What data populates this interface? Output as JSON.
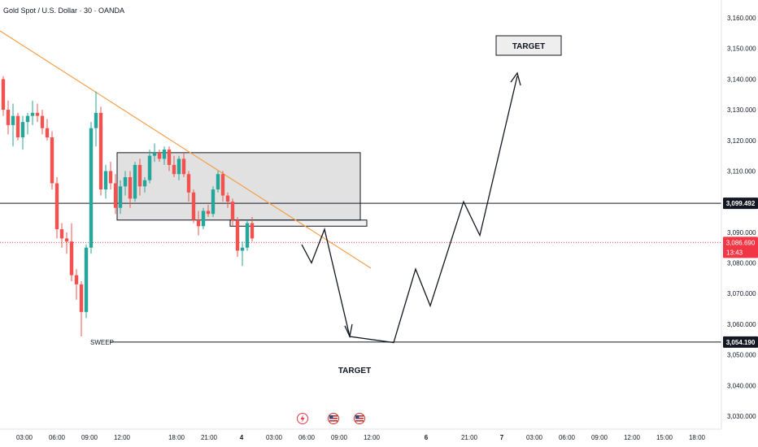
{
  "header": {
    "title": "Gold Spot / U.S. Dollar · 30 · OANDA"
  },
  "colors": {
    "up": "#26a69a",
    "down": "#ef5350",
    "trendline": "#f5a04a",
    "price_tag": "#f23645",
    "level_tag": "#131722"
  },
  "icons": [
    "flash-icon",
    "us-flag-icon",
    "us-flag-icon",
    "us-flag-icon"
  ],
  "chart_data": {
    "type": "candlestick",
    "ylim": [
      3027,
      3167
    ],
    "y_ticks": [
      "3,160.000",
      "3,150.000",
      "3,140.000",
      "3,130.000",
      "3,120.000",
      "3,110.000",
      "3,090.000",
      "3,080.000",
      "3,070.000",
      "3,060.000",
      "3,050.000",
      "3,040.000",
      "3,030.000"
    ],
    "y_tick_values": [
      3160,
      3150,
      3140,
      3130,
      3120,
      3110,
      3090,
      3080,
      3070,
      3060,
      3050,
      3040,
      3030
    ],
    "x_ticks": [
      "03:00",
      "06:00",
      "09:00",
      "12:00",
      "18:00",
      "21:00",
      "4",
      "03:00",
      "06:00",
      "09:00",
      "12:00",
      "6",
      "21:00",
      "7",
      "03:00",
      "06:00",
      "09:00",
      "12:00",
      "15:00",
      "18:00"
    ],
    "candles": [
      [
        3140,
        3141,
        3128,
        3130
      ],
      [
        3130,
        3133,
        3122,
        3125
      ],
      [
        3125,
        3132,
        3118,
        3128
      ],
      [
        3128,
        3129,
        3120,
        3121
      ],
      [
        3121,
        3128,
        3117,
        3126
      ],
      [
        3126,
        3129,
        3122,
        3128
      ],
      [
        3128,
        3133,
        3125,
        3129
      ],
      [
        3129,
        3132,
        3126,
        3128
      ],
      [
        3128,
        3130,
        3122,
        3124
      ],
      [
        3124,
        3127,
        3120,
        3121
      ],
      [
        3121,
        3123,
        3104,
        3106
      ],
      [
        3106,
        3108,
        3088,
        3091
      ],
      [
        3091,
        3093,
        3085,
        3088
      ],
      [
        3088,
        3090,
        3083,
        3087
      ],
      [
        3087,
        3093,
        3074,
        3076
      ],
      [
        3076,
        3078,
        3068,
        3073
      ],
      [
        3073,
        3074,
        3056,
        3064
      ],
      [
        3064,
        3086,
        3062,
        3085
      ],
      [
        3085,
        3126,
        3083,
        3124
      ],
      [
        3124,
        3136,
        3118,
        3129
      ],
      [
        3129,
        3131,
        3102,
        3104
      ],
      [
        3104,
        3112,
        3101,
        3110
      ],
      [
        3110,
        3113,
        3104,
        3106
      ],
      [
        3106,
        3109,
        3096,
        3098
      ],
      [
        3098,
        3107,
        3096,
        3105
      ],
      [
        3105,
        3110,
        3102,
        3108
      ],
      [
        3108,
        3110,
        3098,
        3101
      ],
      [
        3101,
        3113,
        3100,
        3112
      ],
      [
        3112,
        3114,
        3102,
        3105
      ],
      [
        3105,
        3108,
        3103,
        3107
      ],
      [
        3107,
        3117,
        3106,
        3115
      ],
      [
        3115,
        3119,
        3113,
        3116
      ],
      [
        3116,
        3117,
        3113,
        3114
      ],
      [
        3114,
        3118,
        3112,
        3117
      ],
      [
        3117,
        3118,
        3110,
        3112
      ],
      [
        3112,
        3115,
        3108,
        3109
      ],
      [
        3109,
        3115,
        3107,
        3114
      ],
      [
        3114,
        3116,
        3108,
        3109
      ],
      [
        3109,
        3110,
        3100,
        3103
      ],
      [
        3103,
        3104,
        3093,
        3094
      ],
      [
        3094,
        3097,
        3089,
        3092
      ],
      [
        3092,
        3098,
        3091,
        3097
      ],
      [
        3097,
        3099,
        3095,
        3096
      ],
      [
        3096,
        3105,
        3095,
        3104
      ],
      [
        3104,
        3110,
        3103,
        3109
      ],
      [
        3109,
        3110,
        3100,
        3102
      ],
      [
        3102,
        3103,
        3098,
        3100
      ],
      [
        3100,
        3101,
        3092,
        3094
      ],
      [
        3094,
        3095,
        3082,
        3084
      ],
      [
        3084,
        3087,
        3079,
        3085
      ],
      [
        3085,
        3094,
        3084,
        3093
      ],
      [
        3093,
        3095,
        3087,
        3088
      ]
    ],
    "zones": [
      {
        "label": "",
        "top": 3116,
        "bottom": 3094
      },
      {
        "label": "",
        "top": 3094,
        "bottom": 3092
      }
    ],
    "levels": [
      {
        "value": 3099.492,
        "label": "3,099.492"
      },
      {
        "value": 3054.19,
        "label": "3,054.190",
        "annotation": "SWEEP"
      }
    ],
    "current_price": {
      "value": 3086.69,
      "label": "3,086.690",
      "countdown": "13:43"
    },
    "projection": [
      [
        3094,
        3080
      ],
      [
        3090,
        3092
      ],
      [
        3060,
        3057
      ],
      [
        3054,
        3078
      ],
      [
        3066,
        3100
      ],
      [
        3089,
        3140
      ]
    ],
    "targets": [
      "TARGET",
      "TARGET"
    ]
  }
}
